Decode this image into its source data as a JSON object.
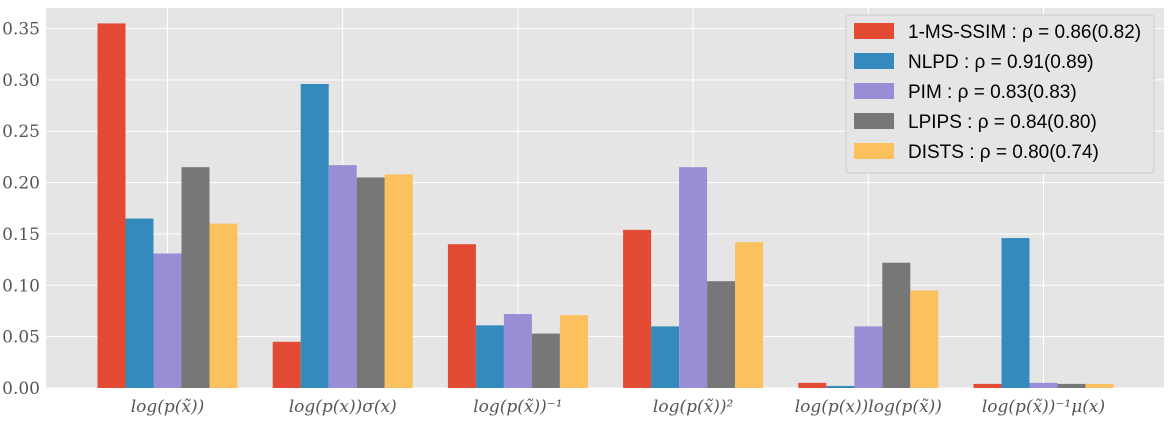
{
  "chart_data": {
    "type": "bar",
    "categories": [
      "log(p(x̃))",
      "log(p(x))σ(x)",
      "log(p(x̃))⁻¹",
      "log(p(x̃))²",
      "log(p(x))log(p(x̃))",
      "log(p(x̃))⁻¹μ(x)"
    ],
    "series": [
      {
        "name": "1-MS-SSIM : ρ = 0.86(0.82)",
        "color": "#E24A33",
        "values": [
          0.355,
          0.045,
          0.14,
          0.154,
          0.005,
          0.004
        ]
      },
      {
        "name": "NLPD : ρ = 0.91(0.89)",
        "color": "#348ABD",
        "values": [
          0.165,
          0.296,
          0.061,
          0.06,
          0.002,
          0.146
        ]
      },
      {
        "name": "PIM : ρ = 0.83(0.83)",
        "color": "#988ED5",
        "values": [
          0.131,
          0.217,
          0.072,
          0.215,
          0.06,
          0.005
        ]
      },
      {
        "name": "LPIPS : ρ = 0.84(0.80)",
        "color": "#777777",
        "values": [
          0.215,
          0.205,
          0.053,
          0.104,
          0.122,
          0.004
        ]
      },
      {
        "name": "DISTS : ρ = 0.80(0.74)",
        "color": "#FBC15E",
        "values": [
          0.16,
          0.208,
          0.071,
          0.142,
          0.095,
          0.004
        ]
      }
    ],
    "yticks": [
      "0.00",
      "0.05",
      "0.10",
      "0.15",
      "0.20",
      "0.25",
      "0.30",
      "0.35"
    ],
    "ylim": [
      0,
      0.37
    ],
    "title": "",
    "xlabel": "",
    "ylabel": "",
    "grid": true,
    "legend_position": "top-right",
    "background_color": "#E5E5E5",
    "grid_color": "#FFFFFF"
  }
}
